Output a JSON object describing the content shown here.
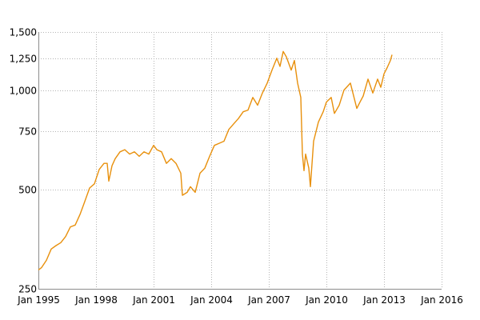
{
  "chart_data": {
    "type": "line",
    "title": "",
    "xlabel": "",
    "ylabel": "",
    "y_scale": "log",
    "grid": true,
    "legend": "none",
    "xlim": [
      "1995-01",
      "2016-01"
    ],
    "ylim": [
      250,
      1500
    ],
    "x_ticks": [
      "Jan 1995",
      "Jan 1998",
      "Jan 2001",
      "Jan 2004",
      "Jan 2007",
      "Jan 2010",
      "Jan 2013",
      "Jan 2016"
    ],
    "y_ticks": [
      "250",
      "500",
      "750",
      "1,000",
      "1,250",
      "1,500"
    ],
    "series": [
      {
        "color": "#e8900c",
        "points": [
          [
            "1995-01",
            285
          ],
          [
            "1995-03",
            290
          ],
          [
            "1995-06",
            305
          ],
          [
            "1995-09",
            330
          ],
          [
            "1995-12",
            338
          ],
          [
            "1996-03",
            345
          ],
          [
            "1996-06",
            360
          ],
          [
            "1996-09",
            385
          ],
          [
            "1996-12",
            390
          ],
          [
            "1997-03",
            420
          ],
          [
            "1997-06",
            460
          ],
          [
            "1997-09",
            505
          ],
          [
            "1997-12",
            520
          ],
          [
            "1998-03",
            575
          ],
          [
            "1998-06",
            600
          ],
          [
            "1998-08",
            600
          ],
          [
            "1998-09",
            530
          ],
          [
            "1998-11",
            590
          ],
          [
            "1999-01",
            620
          ],
          [
            "1999-04",
            650
          ],
          [
            "1999-07",
            660
          ],
          [
            "1999-10",
            640
          ],
          [
            "2000-01",
            650
          ],
          [
            "2000-04",
            630
          ],
          [
            "2000-07",
            650
          ],
          [
            "2000-10",
            640
          ],
          [
            "2001-01",
            680
          ],
          [
            "2001-03",
            660
          ],
          [
            "2001-06",
            650
          ],
          [
            "2001-09",
            600
          ],
          [
            "2001-12",
            620
          ],
          [
            "2002-03",
            600
          ],
          [
            "2002-06",
            560
          ],
          [
            "2002-07",
            480
          ],
          [
            "2002-10",
            490
          ],
          [
            "2002-12",
            510
          ],
          [
            "2003-03",
            490
          ],
          [
            "2003-06",
            560
          ],
          [
            "2003-09",
            580
          ],
          [
            "2003-12",
            630
          ],
          [
            "2004-03",
            680
          ],
          [
            "2004-06",
            690
          ],
          [
            "2004-09",
            700
          ],
          [
            "2004-12",
            760
          ],
          [
            "2005-03",
            790
          ],
          [
            "2005-06",
            820
          ],
          [
            "2005-09",
            860
          ],
          [
            "2005-12",
            870
          ],
          [
            "2006-03",
            950
          ],
          [
            "2006-06",
            900
          ],
          [
            "2006-09",
            980
          ],
          [
            "2006-12",
            1050
          ],
          [
            "2007-03",
            1150
          ],
          [
            "2007-06",
            1250
          ],
          [
            "2007-08",
            1180
          ],
          [
            "2007-10",
            1310
          ],
          [
            "2007-12",
            1260
          ],
          [
            "2008-03",
            1150
          ],
          [
            "2008-05",
            1230
          ],
          [
            "2008-07",
            1050
          ],
          [
            "2008-09",
            950
          ],
          [
            "2008-10",
            640
          ],
          [
            "2008-11",
            570
          ],
          [
            "2008-12",
            640
          ],
          [
            "2009-02",
            580
          ],
          [
            "2009-03",
            510
          ],
          [
            "2009-05",
            700
          ],
          [
            "2009-08",
            800
          ],
          [
            "2009-11",
            860
          ],
          [
            "2010-01",
            920
          ],
          [
            "2010-04",
            950
          ],
          [
            "2010-06",
            850
          ],
          [
            "2010-09",
            900
          ],
          [
            "2010-12",
            1000
          ],
          [
            "2011-04",
            1050
          ],
          [
            "2011-08",
            880
          ],
          [
            "2011-10",
            920
          ],
          [
            "2011-12",
            960
          ],
          [
            "2012-03",
            1080
          ],
          [
            "2012-06",
            980
          ],
          [
            "2012-09",
            1080
          ],
          [
            "2012-11",
            1020
          ],
          [
            "2013-01",
            1120
          ],
          [
            "2013-03",
            1170
          ],
          [
            "2013-05",
            1230
          ],
          [
            "2013-06",
            1280
          ]
        ]
      }
    ]
  }
}
